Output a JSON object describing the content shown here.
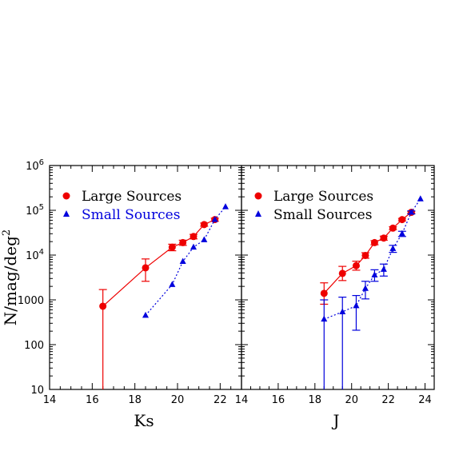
{
  "chart_data": [
    {
      "type": "scatter",
      "panel": "left",
      "xlabel": "Ks",
      "ylabel": "N/mag/deg",
      "ylabel_superscript": "2",
      "xlim": [
        14,
        23
      ],
      "ylim": [
        10,
        1000000
      ],
      "y_scale": "log",
      "x_ticks": [
        "14",
        "16",
        "18",
        "20",
        "22"
      ],
      "y_ticks": [
        {
          "value": 10,
          "label": "10",
          "sup": ""
        },
        {
          "value": 100,
          "label": "100",
          "sup": ""
        },
        {
          "value": 1000,
          "label": "1000",
          "sup": ""
        },
        {
          "value": 10000,
          "label": "10",
          "sup": "4"
        },
        {
          "value": 100000,
          "label": "10",
          "sup": "5"
        },
        {
          "value": 1000000,
          "label": "10",
          "sup": "6"
        }
      ],
      "legend_position": "top-left",
      "series": [
        {
          "name": "Large Sources",
          "color": "#ee0000",
          "marker": "circle",
          "line": "solid",
          "points": [
            {
              "x": 16.5,
              "y": 720,
              "ylo": 10,
              "yhi": 1700
            },
            {
              "x": 18.5,
              "y": 5200,
              "ylo": 2600,
              "yhi": 8200
            },
            {
              "x": 19.75,
              "y": 15000,
              "ylo": 12500,
              "yhi": 17500
            },
            {
              "x": 20.25,
              "y": 19000,
              "ylo": 16500,
              "yhi": 21500
            },
            {
              "x": 20.75,
              "y": 26000,
              "ylo": 23000,
              "yhi": 29000
            },
            {
              "x": 21.25,
              "y": 48000,
              "ylo": 44000,
              "yhi": 52000
            },
            {
              "x": 21.75,
              "y": 62000,
              "ylo": 57000,
              "yhi": 67000
            }
          ]
        },
        {
          "name": "Small Sources",
          "color": "#0000dd",
          "marker": "triangle",
          "line": "dotted",
          "points": [
            {
              "x": 18.5,
              "y": 450
            },
            {
              "x": 19.75,
              "y": 2200
            },
            {
              "x": 20.25,
              "y": 7200
            },
            {
              "x": 20.75,
              "y": 15000
            },
            {
              "x": 21.25,
              "y": 22000
            },
            {
              "x": 21.75,
              "y": 62000
            },
            {
              "x": 22.25,
              "y": 120000
            }
          ]
        }
      ]
    },
    {
      "type": "scatter",
      "panel": "right",
      "xlabel": "J",
      "ylabel": "",
      "xlim": [
        14,
        24.5
      ],
      "ylim": [
        10,
        1000000
      ],
      "y_scale": "log",
      "x_ticks": [
        "14",
        "16",
        "18",
        "20",
        "22",
        "24"
      ],
      "legend_position": "top-left",
      "series": [
        {
          "name": "Large Sources",
          "color": "#ee0000",
          "marker": "circle",
          "line": "solid",
          "points": [
            {
              "x": 18.5,
              "y": 1400,
              "ylo": 800,
              "yhi": 2400
            },
            {
              "x": 19.5,
              "y": 3900,
              "ylo": 2700,
              "yhi": 5600
            },
            {
              "x": 20.25,
              "y": 5800,
              "ylo": 4600,
              "yhi": 7300
            },
            {
              "x": 20.75,
              "y": 9800,
              "ylo": 8500,
              "yhi": 11300
            },
            {
              "x": 21.25,
              "y": 19000,
              "ylo": 17000,
              "yhi": 21000
            },
            {
              "x": 21.75,
              "y": 24000,
              "ylo": 21500,
              "yhi": 26500
            },
            {
              "x": 22.25,
              "y": 40000,
              "ylo": 37000,
              "yhi": 43000
            },
            {
              "x": 22.75,
              "y": 62000,
              "ylo": 58000,
              "yhi": 66000
            },
            {
              "x": 23.25,
              "y": 90000,
              "ylo": 85000,
              "yhi": 95000
            }
          ]
        },
        {
          "name": "Small Sources",
          "color": "#0000dd",
          "marker": "triangle",
          "line": "dotted",
          "points": [
            {
              "x": 18.5,
              "y": 370,
              "ylo": 10,
              "yhi": 1000
            },
            {
              "x": 19.5,
              "y": 540,
              "ylo": 10,
              "yhi": 1150
            },
            {
              "x": 20.25,
              "y": 740,
              "ylo": 210,
              "yhi": 1250
            },
            {
              "x": 20.75,
              "y": 1800,
              "ylo": 1050,
              "yhi": 2600
            },
            {
              "x": 21.25,
              "y": 3600,
              "ylo": 2600,
              "yhi": 4700
            },
            {
              "x": 21.75,
              "y": 4800,
              "ylo": 3400,
              "yhi": 6300
            },
            {
              "x": 22.25,
              "y": 14000,
              "ylo": 11500,
              "yhi": 16500
            },
            {
              "x": 22.75,
              "y": 30000,
              "ylo": 26000,
              "yhi": 34000
            },
            {
              "x": 23.25,
              "y": 90000,
              "ylo": 83000,
              "yhi": 97000
            },
            {
              "x": 23.75,
              "y": 180000
            }
          ]
        }
      ]
    }
  ]
}
